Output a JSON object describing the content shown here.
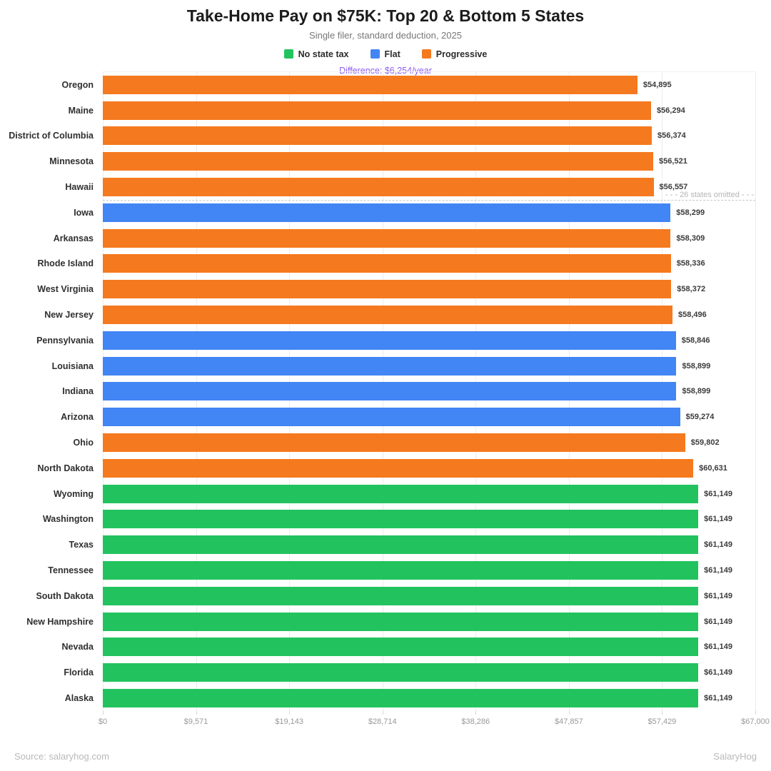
{
  "header": {
    "title": "Take-Home Pay on $75K: Top 20 & Bottom 5 States",
    "subtitle": "Single filer, standard deduction, 2025",
    "difference_note": "Difference: $6,254/year",
    "difference_color": "#8B5CF6"
  },
  "legend": [
    {
      "label": "No state tax",
      "type": "none",
      "color": "#22C35E"
    },
    {
      "label": "Flat",
      "type": "flat",
      "color": "#4285F4"
    },
    {
      "label": "Progressive",
      "type": "progressive",
      "color": "#F5791E"
    }
  ],
  "chart_data": {
    "type": "bar",
    "orientation": "horizontal",
    "title": "Take-Home Pay on $75K: Top 20 & Bottom 5 States",
    "subtitle": "Single filer, standard deduction, 2025",
    "xlabel": "",
    "ylabel": "",
    "xlim": [
      0,
      67000
    ],
    "grid": true,
    "legend_position": "top",
    "colors": {
      "none": "#22C35E",
      "flat": "#4285F4",
      "progressive": "#F5791E"
    },
    "categories": [
      "Oregon",
      "Maine",
      "District of Columbia",
      "Minnesota",
      "Hawaii",
      "Iowa",
      "Arkansas",
      "Rhode Island",
      "West Virginia",
      "New Jersey",
      "Pennsylvania",
      "Louisiana",
      "Indiana",
      "Arizona",
      "Ohio",
      "North Dakota",
      "Wyoming",
      "Washington",
      "Texas",
      "Tennessee",
      "South Dakota",
      "New Hampshire",
      "Nevada",
      "Florida",
      "Alaska"
    ],
    "values": [
      54895,
      56294,
      56374,
      56521,
      56557,
      58299,
      58309,
      58336,
      58372,
      58496,
      58846,
      58899,
      58899,
      59274,
      59802,
      60631,
      61149,
      61149,
      61149,
      61149,
      61149,
      61149,
      61149,
      61149,
      61149
    ],
    "bars": [
      {
        "name": "Oregon",
        "value": 54895,
        "label": "$54,895",
        "type": "progressive"
      },
      {
        "name": "Maine",
        "value": 56294,
        "label": "$56,294",
        "type": "progressive"
      },
      {
        "name": "District of Columbia",
        "value": 56374,
        "label": "$56,374",
        "type": "progressive"
      },
      {
        "name": "Minnesota",
        "value": 56521,
        "label": "$56,521",
        "type": "progressive"
      },
      {
        "name": "Hawaii",
        "value": 56557,
        "label": "$56,557",
        "type": "progressive"
      },
      {
        "name": "Iowa",
        "value": 58299,
        "label": "$58,299",
        "type": "flat"
      },
      {
        "name": "Arkansas",
        "value": 58309,
        "label": "$58,309",
        "type": "progressive"
      },
      {
        "name": "Rhode Island",
        "value": 58336,
        "label": "$58,336",
        "type": "progressive"
      },
      {
        "name": "West Virginia",
        "value": 58372,
        "label": "$58,372",
        "type": "progressive"
      },
      {
        "name": "New Jersey",
        "value": 58496,
        "label": "$58,496",
        "type": "progressive"
      },
      {
        "name": "Pennsylvania",
        "value": 58846,
        "label": "$58,846",
        "type": "flat"
      },
      {
        "name": "Louisiana",
        "value": 58899,
        "label": "$58,899",
        "type": "flat"
      },
      {
        "name": "Indiana",
        "value": 58899,
        "label": "$58,899",
        "type": "flat"
      },
      {
        "name": "Arizona",
        "value": 59274,
        "label": "$59,274",
        "type": "flat"
      },
      {
        "name": "Ohio",
        "value": 59802,
        "label": "$59,802",
        "type": "progressive"
      },
      {
        "name": "North Dakota",
        "value": 60631,
        "label": "$60,631",
        "type": "progressive"
      },
      {
        "name": "Wyoming",
        "value": 61149,
        "label": "$61,149",
        "type": "none"
      },
      {
        "name": "Washington",
        "value": 61149,
        "label": "$61,149",
        "type": "none"
      },
      {
        "name": "Texas",
        "value": 61149,
        "label": "$61,149",
        "type": "none"
      },
      {
        "name": "Tennessee",
        "value": 61149,
        "label": "$61,149",
        "type": "none"
      },
      {
        "name": "South Dakota",
        "value": 61149,
        "label": "$61,149",
        "type": "none"
      },
      {
        "name": "New Hampshire",
        "value": 61149,
        "label": "$61,149",
        "type": "none"
      },
      {
        "name": "Nevada",
        "value": 61149,
        "label": "$61,149",
        "type": "none"
      },
      {
        "name": "Florida",
        "value": 61149,
        "label": "$61,149",
        "type": "none"
      },
      {
        "name": "Alaska",
        "value": 61149,
        "label": "$61,149",
        "type": "none"
      }
    ],
    "x_ticks": [
      {
        "value": 0,
        "label": "$0"
      },
      {
        "value": 9571,
        "label": "$9,571"
      },
      {
        "value": 19143,
        "label": "$19,143"
      },
      {
        "value": 28714,
        "label": "$28,714"
      },
      {
        "value": 38286,
        "label": "$38,286"
      },
      {
        "value": 47857,
        "label": "$47,857"
      },
      {
        "value": 57429,
        "label": "$57,429"
      },
      {
        "value": 67000,
        "label": "$67,000"
      }
    ],
    "separator": {
      "after_index": 4,
      "label": "- - -  26 states omitted  - - -"
    }
  },
  "footer": {
    "source": "Source: salaryhog.com",
    "brand": "SalaryHog"
  }
}
